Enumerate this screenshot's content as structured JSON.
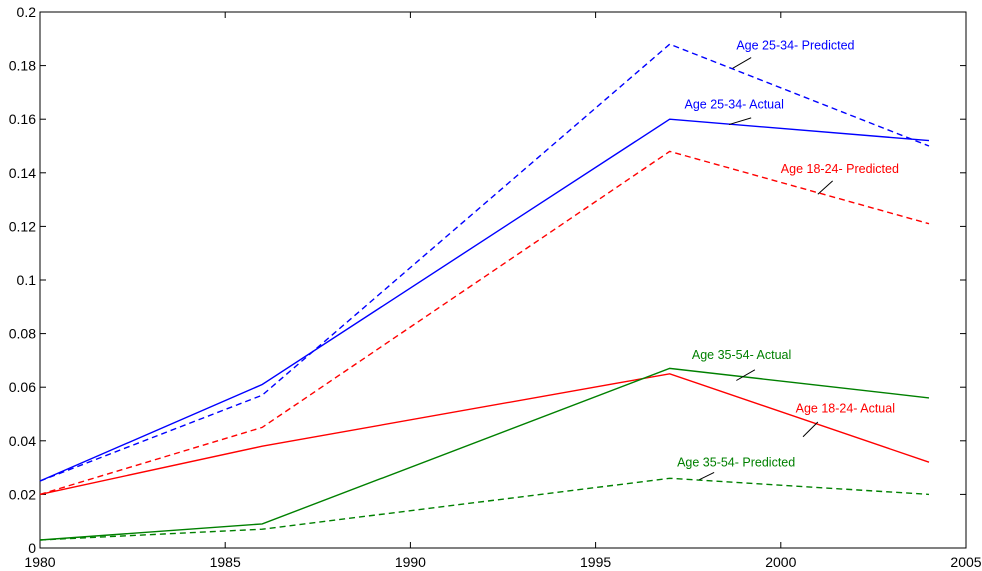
{
  "chart_data": {
    "type": "line",
    "title": "",
    "xlabel": "",
    "ylabel": "",
    "xlim": [
      1980,
      2005
    ],
    "ylim": [
      0,
      0.2
    ],
    "grid": false,
    "legend": "none",
    "x_ticks": [
      1980,
      1985,
      1990,
      1995,
      2000,
      2005
    ],
    "y_ticks": [
      0,
      0.02,
      0.04,
      0.06,
      0.08,
      0.1,
      0.12,
      0.14,
      0.16,
      0.18,
      0.2
    ],
    "x_tick_labels": [
      "1980",
      "1985",
      "1990",
      "1995",
      "2000",
      "2005"
    ],
    "y_tick_labels": [
      "0",
      "0.02",
      "0.04",
      "0.06",
      "0.08",
      "0.1",
      "0.12",
      "0.14",
      "0.16",
      "0.18",
      "0.2"
    ],
    "series": [
      {
        "name": "Age 25-34- Predicted",
        "color": "#0000ff",
        "dash": "dashed",
        "x": [
          1980,
          1986,
          1997,
          2004
        ],
        "y": [
          0.025,
          0.057,
          0.188,
          0.15
        ]
      },
      {
        "name": "Age 25-34- Actual",
        "color": "#0000ff",
        "dash": "solid",
        "x": [
          1980,
          1986,
          1997,
          2004
        ],
        "y": [
          0.025,
          0.061,
          0.16,
          0.152
        ]
      },
      {
        "name": "Age 18-24- Predicted",
        "color": "#ff0000",
        "dash": "dashed",
        "x": [
          1980,
          1986,
          1997,
          2004
        ],
        "y": [
          0.02,
          0.045,
          0.148,
          0.121
        ]
      },
      {
        "name": "Age 18-24- Actual",
        "color": "#ff0000",
        "dash": "solid",
        "x": [
          1980,
          1986,
          1997,
          2004
        ],
        "y": [
          0.02,
          0.038,
          0.065,
          0.032
        ]
      },
      {
        "name": "Age 35-54- Actual",
        "color": "#008000",
        "dash": "solid",
        "x": [
          1980,
          1986,
          1997,
          2004
        ],
        "y": [
          0.003,
          0.009,
          0.067,
          0.056
        ]
      },
      {
        "name": "Age 35-54- Predicted",
        "color": "#008000",
        "dash": "dashed",
        "x": [
          1980,
          1986,
          1997,
          2004
        ],
        "y": [
          0.003,
          0.007,
          0.026,
          0.02
        ]
      }
    ],
    "annotations": [
      {
        "text": "Age 25-34- Predicted",
        "color": "#0000ff",
        "x": 1998.8,
        "y": 0.186,
        "leader_from": [
          1999.2,
          0.183
        ],
        "leader_to": [
          1998.7,
          0.179
        ]
      },
      {
        "text": "Age 25-34- Actual",
        "color": "#0000ff",
        "x": 1997.4,
        "y": 0.164,
        "leader_from": [
          1999.2,
          0.1605
        ],
        "leader_to": [
          1998.6,
          0.158
        ]
      },
      {
        "text": "Age 18-24- Predicted",
        "color": "#ff0000",
        "x": 2000.0,
        "y": 0.14,
        "leader_from": [
          2001.4,
          0.137
        ],
        "leader_to": [
          2001.0,
          0.132
        ]
      },
      {
        "text": "Age 35-54- Actual",
        "color": "#008000",
        "x": 1997.6,
        "y": 0.0705,
        "leader_from": [
          1999.3,
          0.0665
        ],
        "leader_to": [
          1998.8,
          0.0625
        ]
      },
      {
        "text": "Age 18-24- Actual",
        "color": "#ff0000",
        "x": 2000.4,
        "y": 0.0505,
        "leader_from": [
          2001.0,
          0.047
        ],
        "leader_to": [
          2000.6,
          0.0415
        ]
      },
      {
        "text": "Age 35-54- Predicted",
        "color": "#008000",
        "x": 1997.2,
        "y": 0.0305,
        "leader_from": [
          1998.2,
          0.0282
        ],
        "leader_to": [
          1997.8,
          0.0255
        ]
      }
    ]
  }
}
